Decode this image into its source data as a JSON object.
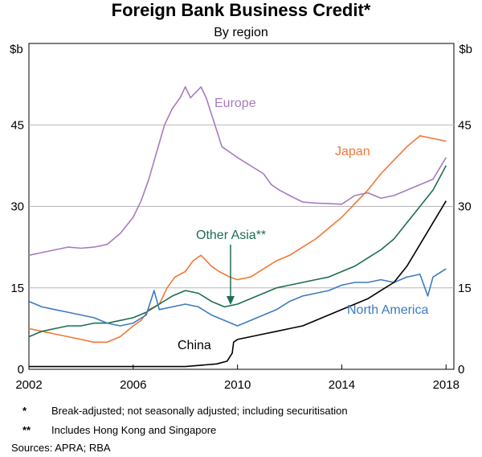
{
  "chart_data": {
    "type": "line",
    "title": "Foreign Bank Business Credit*",
    "subtitle": "By region",
    "y_unit_left": "$b",
    "y_unit_right": "$b",
    "ylim": [
      0,
      45
    ],
    "yticks": [
      0,
      15,
      30,
      45
    ],
    "xlim": [
      2002,
      2018.3
    ],
    "xticks": [
      2002,
      2006,
      2010,
      2014,
      2018
    ],
    "grid": true,
    "legend": "inline labels",
    "series": [
      {
        "name": "Europe",
        "color": "#a77bbf",
        "points": [
          [
            2002,
            21
          ],
          [
            2002.5,
            21.5
          ],
          [
            2003,
            22
          ],
          [
            2003.5,
            22.5
          ],
          [
            2004,
            22.3
          ],
          [
            2004.5,
            22.5
          ],
          [
            2005,
            23
          ],
          [
            2005.5,
            25
          ],
          [
            2006,
            28
          ],
          [
            2006.3,
            31
          ],
          [
            2006.6,
            35
          ],
          [
            2006.9,
            40
          ],
          [
            2007.2,
            45
          ],
          [
            2007.5,
            48
          ],
          [
            2007.8,
            50
          ],
          [
            2008,
            52
          ],
          [
            2008.2,
            50
          ],
          [
            2008.4,
            51
          ],
          [
            2008.6,
            52
          ],
          [
            2008.8,
            50
          ],
          [
            2009,
            47
          ],
          [
            2009.2,
            44
          ],
          [
            2009.4,
            41
          ],
          [
            2009.7,
            40
          ],
          [
            2010,
            39
          ],
          [
            2010.5,
            37.5
          ],
          [
            2011,
            36
          ],
          [
            2011.3,
            34
          ],
          [
            2011.6,
            33
          ],
          [
            2012,
            32
          ],
          [
            2012.5,
            30.8
          ],
          [
            2013,
            30.6
          ],
          [
            2013.5,
            30.5
          ],
          [
            2014,
            30.4
          ],
          [
            2014.5,
            32
          ],
          [
            2015,
            32.5
          ],
          [
            2015.5,
            31.5
          ],
          [
            2016,
            32
          ],
          [
            2016.5,
            33
          ],
          [
            2017,
            34
          ],
          [
            2017.5,
            35
          ],
          [
            2018,
            39
          ]
        ]
      },
      {
        "name": "Japan",
        "color": "#f07836",
        "points": [
          [
            2002,
            7.5
          ],
          [
            2002.5,
            7
          ],
          [
            2003,
            6.5
          ],
          [
            2003.5,
            6
          ],
          [
            2004,
            5.5
          ],
          [
            2004.5,
            5
          ],
          [
            2005,
            5
          ],
          [
            2005.5,
            6
          ],
          [
            2006,
            8
          ],
          [
            2006.3,
            9
          ],
          [
            2006.6,
            11
          ],
          [
            2007,
            12
          ],
          [
            2007.3,
            15
          ],
          [
            2007.6,
            17
          ],
          [
            2008,
            18
          ],
          [
            2008.3,
            20
          ],
          [
            2008.6,
            21
          ],
          [
            2009,
            19
          ],
          [
            2009.3,
            18
          ],
          [
            2009.7,
            17
          ],
          [
            2010,
            16.5
          ],
          [
            2010.5,
            17
          ],
          [
            2011,
            18.5
          ],
          [
            2011.5,
            20
          ],
          [
            2012,
            21
          ],
          [
            2012.5,
            22.5
          ],
          [
            2013,
            24
          ],
          [
            2013.5,
            26
          ],
          [
            2014,
            28
          ],
          [
            2014.5,
            30.5
          ],
          [
            2015,
            33
          ],
          [
            2015.5,
            36
          ],
          [
            2016,
            38.5
          ],
          [
            2016.5,
            41
          ],
          [
            2017,
            43
          ],
          [
            2017.5,
            42.5
          ],
          [
            2018,
            42
          ]
        ]
      },
      {
        "name": "Other Asia**",
        "color": "#1f6e4f",
        "points": [
          [
            2002,
            6
          ],
          [
            2002.5,
            7
          ],
          [
            2003,
            7.5
          ],
          [
            2003.5,
            8
          ],
          [
            2004,
            8
          ],
          [
            2004.5,
            8.5
          ],
          [
            2005,
            8.5
          ],
          [
            2005.5,
            9
          ],
          [
            2006,
            9.5
          ],
          [
            2006.5,
            10.5
          ],
          [
            2007,
            12
          ],
          [
            2007.5,
            13.5
          ],
          [
            2008,
            14.5
          ],
          [
            2008.5,
            14
          ],
          [
            2009,
            12.5
          ],
          [
            2009.5,
            11.5
          ],
          [
            2010,
            12
          ],
          [
            2010.5,
            13
          ],
          [
            2011,
            14
          ],
          [
            2011.5,
            15
          ],
          [
            2012,
            15.5
          ],
          [
            2012.5,
            16
          ],
          [
            2013,
            16.5
          ],
          [
            2013.5,
            17
          ],
          [
            2014,
            18
          ],
          [
            2014.5,
            19
          ],
          [
            2015,
            20.5
          ],
          [
            2015.5,
            22
          ],
          [
            2016,
            24
          ],
          [
            2016.5,
            27
          ],
          [
            2017,
            30
          ],
          [
            2017.5,
            33
          ],
          [
            2018,
            37.5
          ]
        ]
      },
      {
        "name": "North America",
        "color": "#3c7bc0",
        "points": [
          [
            2002,
            12.5
          ],
          [
            2002.5,
            11.5
          ],
          [
            2003,
            11
          ],
          [
            2003.5,
            10.5
          ],
          [
            2004,
            10
          ],
          [
            2004.5,
            9.5
          ],
          [
            2005,
            8.5
          ],
          [
            2005.5,
            8
          ],
          [
            2006,
            8.5
          ],
          [
            2006.5,
            10
          ],
          [
            2006.8,
            14.5
          ],
          [
            2007,
            11
          ],
          [
            2007.5,
            11.5
          ],
          [
            2008,
            12
          ],
          [
            2008.5,
            11.5
          ],
          [
            2009,
            10
          ],
          [
            2009.5,
            9
          ],
          [
            2010,
            8
          ],
          [
            2010.5,
            9
          ],
          [
            2011,
            10
          ],
          [
            2011.5,
            11
          ],
          [
            2012,
            12.5
          ],
          [
            2012.5,
            13.5
          ],
          [
            2013,
            14
          ],
          [
            2013.5,
            14.5
          ],
          [
            2014,
            15.5
          ],
          [
            2014.5,
            16
          ],
          [
            2015,
            16
          ],
          [
            2015.5,
            16.5
          ],
          [
            2016,
            16
          ],
          [
            2016.5,
            17
          ],
          [
            2017,
            17.5
          ],
          [
            2017.3,
            13.5
          ],
          [
            2017.5,
            17
          ],
          [
            2018,
            18.5
          ]
        ]
      },
      {
        "name": "China",
        "color": "#000000",
        "points": [
          [
            2002,
            0.5
          ],
          [
            2004,
            0.5
          ],
          [
            2006,
            0.5
          ],
          [
            2008,
            0.5
          ],
          [
            2009.2,
            1
          ],
          [
            2009.6,
            1.5
          ],
          [
            2009.8,
            3
          ],
          [
            2009.85,
            5
          ],
          [
            2010,
            5.5
          ],
          [
            2010.5,
            6
          ],
          [
            2011,
            6.5
          ],
          [
            2011.5,
            7
          ],
          [
            2012,
            7.5
          ],
          [
            2012.5,
            8
          ],
          [
            2013,
            9
          ],
          [
            2013.5,
            10
          ],
          [
            2014,
            11
          ],
          [
            2014.5,
            12
          ],
          [
            2015,
            13
          ],
          [
            2015.5,
            14.5
          ],
          [
            2016,
            16
          ],
          [
            2016.5,
            19
          ],
          [
            2017,
            23
          ],
          [
            2017.5,
            27
          ],
          [
            2018,
            31
          ]
        ]
      }
    ],
    "annotations": [
      "Other Asia**"
    ]
  },
  "notes": [
    {
      "mark": "*",
      "text": "Break-adjusted; not seasonally adjusted; including securitisation"
    },
    {
      "mark": "**",
      "text": "Includes Hong Kong and Singapore"
    }
  ],
  "sources": "Sources: APRA; RBA"
}
